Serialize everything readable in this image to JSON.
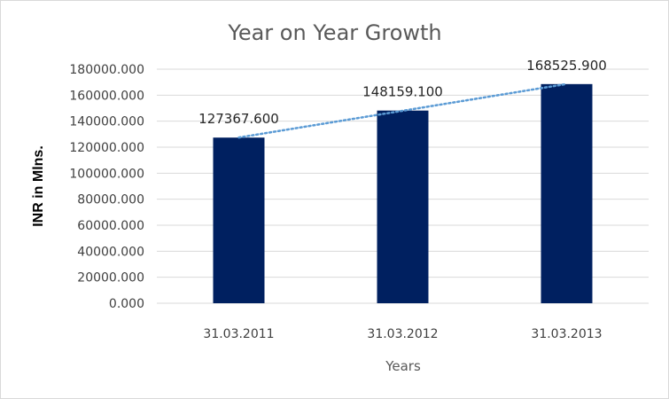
{
  "chart_data": {
    "type": "bar",
    "title": "Year on Year Growth",
    "xlabel": "Years",
    "ylabel": "INR in Mlns.",
    "categories": [
      "31.03.2011",
      "31.03.2012",
      "31.03.2013"
    ],
    "values": [
      127367.6,
      148159.1,
      168525.9
    ],
    "value_labels": [
      "127367.600",
      "148159.100",
      "168525.900"
    ],
    "ylim": [
      0,
      180000
    ],
    "y_ticks": [
      0,
      20000,
      40000,
      60000,
      80000,
      100000,
      120000,
      140000,
      160000,
      180000
    ],
    "y_tick_labels": [
      "0.000",
      "20000.000",
      "40000.000",
      "60000.000",
      "80000.000",
      "100000.000",
      "120000.000",
      "140000.000",
      "160000.000",
      "180000.000"
    ],
    "grid": true,
    "trendline": "linear",
    "colors": {
      "bar": "#002060",
      "trendline": "#5b9bd5",
      "grid": "#d9d9d9"
    }
  }
}
